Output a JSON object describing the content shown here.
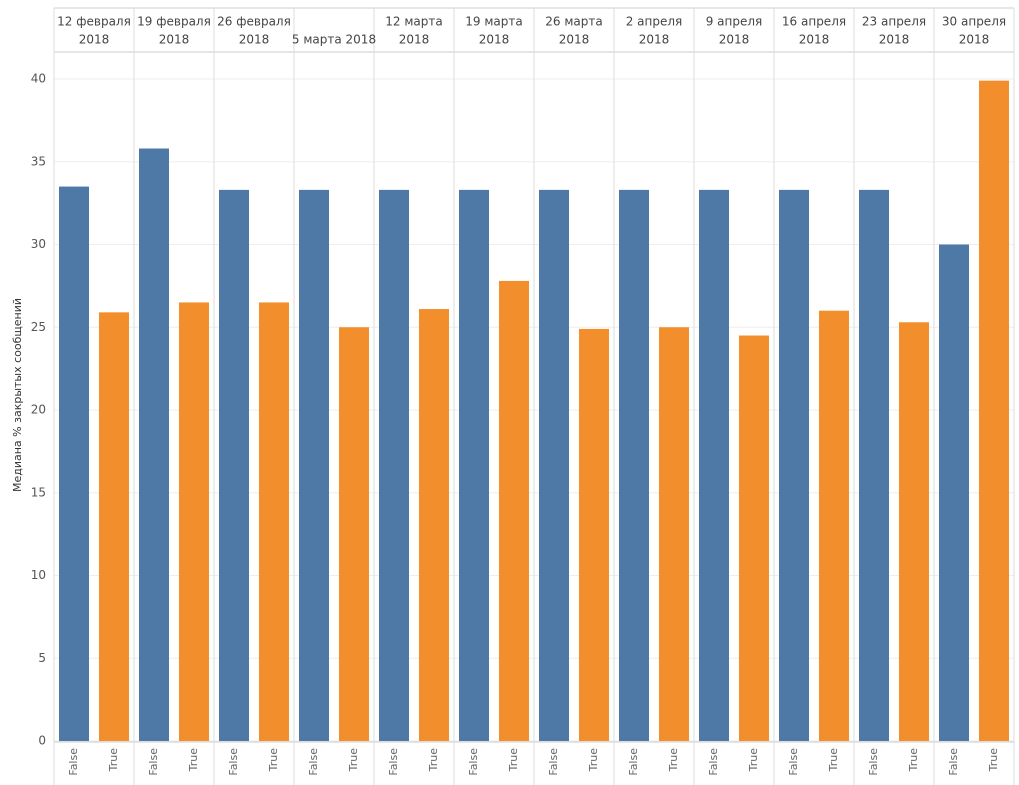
{
  "chart_data": {
    "type": "bar",
    "y_label": "Медиана % закрытых сообщений",
    "categories": [
      [
        "12 февраля",
        "2018"
      ],
      [
        "19 февраля",
        "2018"
      ],
      [
        "26 февраля",
        "2018"
      ],
      [
        "5 марта 2018"
      ],
      [
        "12 марта",
        "2018"
      ],
      [
        "19 марта",
        "2018"
      ],
      [
        "26 марта",
        "2018"
      ],
      [
        "2 апреля",
        "2018"
      ],
      [
        "9 апреля",
        "2018"
      ],
      [
        "16 апреля",
        "2018"
      ],
      [
        "23 апреля",
        "2018"
      ],
      [
        "30 апреля",
        "2018"
      ]
    ],
    "series": [
      {
        "name": "False",
        "color": "#4e79a7",
        "values": [
          33.5,
          35.8,
          33.3,
          33.3,
          33.3,
          33.3,
          33.3,
          33.3,
          33.3,
          33.3,
          33.3,
          30.0
        ]
      },
      {
        "name": "True",
        "color": "#f28e2b",
        "values": [
          25.9,
          26.5,
          26.5,
          25.0,
          26.1,
          27.8,
          24.9,
          25.0,
          24.5,
          26.0,
          25.3,
          39.9
        ]
      }
    ],
    "ylim": [
      0,
      40
    ],
    "yticks": [
      0,
      5,
      10,
      15,
      20,
      25,
      30,
      35,
      40
    ],
    "grid": true
  }
}
